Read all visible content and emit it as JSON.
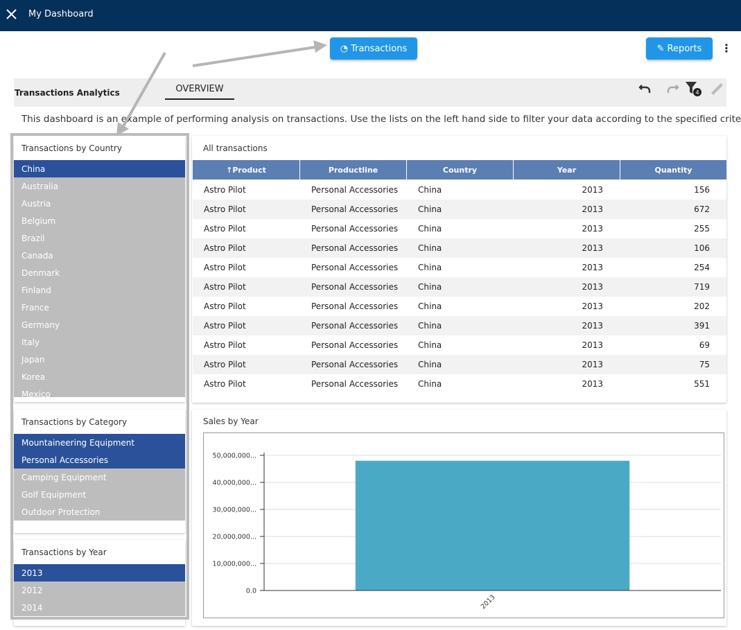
{
  "header": {
    "title": "My Dashboard"
  },
  "buttons": {
    "transactions": "Transactions",
    "reports": "Reports"
  },
  "toolbar": {
    "title": "Transactions Analytics",
    "tab": "OVERVIEW",
    "filter_count": 4
  },
  "description": "This dashboard is an example of performing analysis on transactions. Use the lists on the left hand side to filter your data according to the specified criteria.",
  "lists": [
    {
      "title": "Transactions by Country",
      "items": [
        {
          "label": "China",
          "selected": true
        },
        {
          "label": "Australia",
          "selected": false
        },
        {
          "label": "Austria",
          "selected": false
        },
        {
          "label": "Belgium",
          "selected": false
        },
        {
          "label": "Brazil",
          "selected": false
        },
        {
          "label": "Canada",
          "selected": false
        },
        {
          "label": "Denmark",
          "selected": false
        },
        {
          "label": "Finland",
          "selected": false
        },
        {
          "label": "France",
          "selected": false
        },
        {
          "label": "Germany",
          "selected": false
        },
        {
          "label": "Italy",
          "selected": false
        },
        {
          "label": "Japan",
          "selected": false
        },
        {
          "label": "Korea",
          "selected": false
        },
        {
          "label": "Mexico",
          "selected": false
        }
      ]
    },
    {
      "title": "Transactions by Category",
      "items": [
        {
          "label": "Mountaineering Equipment",
          "selected": true
        },
        {
          "label": "Personal Accessories",
          "selected": true
        },
        {
          "label": "Camping Equipment",
          "selected": false
        },
        {
          "label": "Golf Equipment",
          "selected": false
        },
        {
          "label": "Outdoor Protection",
          "selected": false
        }
      ]
    },
    {
      "title": "Transactions by Year",
      "items": [
        {
          "label": "2013",
          "selected": true
        },
        {
          "label": "2012",
          "selected": false
        },
        {
          "label": "2014",
          "selected": false
        }
      ]
    }
  ],
  "table": {
    "title": "All transactions",
    "columns": [
      "Product",
      "Productline",
      "Country",
      "Year",
      "Quantity"
    ],
    "rows": [
      [
        "Astro Pilot",
        "Personal Accessories",
        "China",
        2013,
        156
      ],
      [
        "Astro Pilot",
        "Personal Accessories",
        "China",
        2013,
        672
      ],
      [
        "Astro Pilot",
        "Personal Accessories",
        "China",
        2013,
        255
      ],
      [
        "Astro Pilot",
        "Personal Accessories",
        "China",
        2013,
        106
      ],
      [
        "Astro Pilot",
        "Personal Accessories",
        "China",
        2013,
        254
      ],
      [
        "Astro Pilot",
        "Personal Accessories",
        "China",
        2013,
        719
      ],
      [
        "Astro Pilot",
        "Personal Accessories",
        "China",
        2013,
        202
      ],
      [
        "Astro Pilot",
        "Personal Accessories",
        "China",
        2013,
        391
      ],
      [
        "Astro Pilot",
        "Personal Accessories",
        "China",
        2013,
        69
      ],
      [
        "Astro Pilot",
        "Personal Accessories",
        "China",
        2013,
        75
      ],
      [
        "Astro Pilot",
        "Personal Accessories",
        "China",
        2013,
        551
      ]
    ]
  },
  "chart_data": {
    "type": "bar",
    "title": "Sales by Year",
    "categories": [
      "2013"
    ],
    "values": [
      48000000
    ],
    "color": "#4aaac6",
    "ylim": [
      0,
      50000000
    ],
    "yticks": [
      {
        "value": 0,
        "label": "0.0"
      },
      {
        "value": 10000000,
        "label": "10,000,000..."
      },
      {
        "value": 20000000,
        "label": "20,000,000..."
      },
      {
        "value": 30000000,
        "label": "30,000,000..."
      },
      {
        "value": 40000000,
        "label": "40,000,000..."
      },
      {
        "value": 50000000,
        "label": "50,000,000..."
      }
    ],
    "grid": true
  }
}
